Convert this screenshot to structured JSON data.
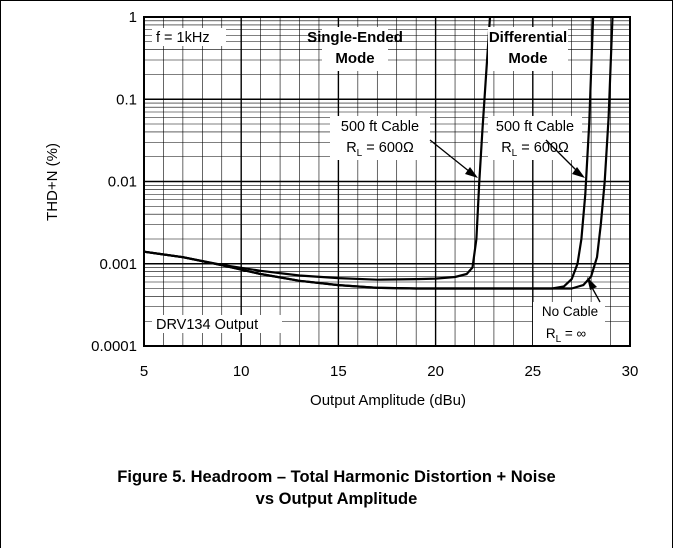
{
  "chart_data": {
    "type": "line",
    "title": "",
    "xlabel": "Output Amplitude (dBu)",
    "ylabel": "THD+N (%)",
    "xlim": [
      5,
      30
    ],
    "ylim": [
      0.0001,
      1
    ],
    "y_scale": "log",
    "grid": true,
    "x_ticks": [
      "5",
      "10",
      "15",
      "20",
      "25",
      "30"
    ],
    "y_ticks": [
      "1",
      "0.1",
      "0.01",
      "0.001",
      "0.0001"
    ],
    "series": [
      {
        "x": [
          5,
          7,
          9,
          11,
          13,
          15,
          17,
          19,
          20,
          21,
          21.6,
          21.9,
          22.1,
          22.25,
          22.4,
          22.6,
          22.8
        ],
        "values": [
          0.0014,
          0.0012,
          0.00097,
          0.00082,
          0.00072,
          0.00067,
          0.00064,
          0.00065,
          0.00066,
          0.00069,
          0.00075,
          0.0009,
          0.002,
          0.01,
          0.04,
          0.2,
          1
        ]
      },
      {
        "x": [
          5,
          7,
          9,
          11,
          13,
          15,
          17,
          19,
          21,
          23,
          25,
          26,
          26.6,
          27.0,
          27.3,
          27.5,
          27.7,
          27.9,
          28.1
        ],
        "values": [
          0.0014,
          0.0012,
          0.00096,
          0.00075,
          0.00062,
          0.00055,
          0.00051,
          0.0005,
          0.0005,
          0.0005,
          0.0005,
          0.0005,
          0.00053,
          0.00065,
          0.001,
          0.002,
          0.007,
          0.05,
          1
        ]
      },
      {
        "x": [
          5,
          7,
          9,
          11,
          13,
          15,
          17,
          19,
          21,
          23,
          25,
          27,
          27.6,
          28.0,
          28.3,
          28.5,
          28.7,
          28.9,
          29.1
        ],
        "values": [
          0.0014,
          0.0012,
          0.00096,
          0.00075,
          0.00062,
          0.00055,
          0.00051,
          0.0005,
          0.0005,
          0.0005,
          0.0005,
          0.0005,
          0.00055,
          0.0007,
          0.0012,
          0.003,
          0.01,
          0.06,
          1
        ]
      }
    ],
    "annotations": {
      "freq": "f = 1kHz",
      "se_line1": "Single-Ended",
      "se_line2": "Mode",
      "diff_line1": "Differential",
      "diff_line2": "Mode",
      "cable1_line1": "500 ft Cable",
      "cable1_rl": "R",
      "cable1_sub": "L",
      "cable1_val": " = 600Ω",
      "cable2_line1": "500 ft Cable",
      "cable2_rl": "R",
      "cable2_sub": "L",
      "cable2_val": " = 600Ω",
      "nocable_line1": "No Cable",
      "nocable_rl": "R",
      "nocable_sub": "L",
      "nocable_val": " = ∞",
      "output": "DRV134 Output"
    }
  },
  "caption": {
    "line1": "Figure 5. Headroom – Total Harmonic Distortion + Noise",
    "line2": "vs Output Amplitude"
  }
}
